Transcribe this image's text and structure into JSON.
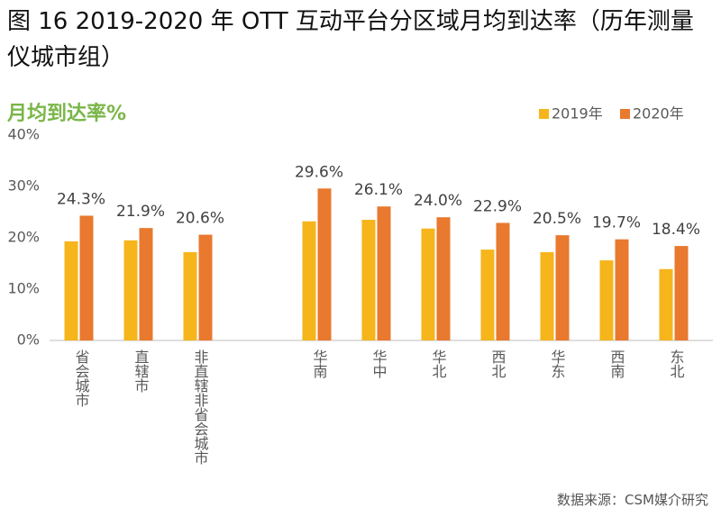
{
  "title": "图 16 2019-2020 年 OTT 互动平台分区域月均到达率（历年测量仪城市组）",
  "chart_data": {
    "type": "bar",
    "title": "月均到达率%",
    "categories": [
      "省会城市",
      "直辖市",
      "非直辖非省会城市",
      null,
      "华南",
      "华中",
      "华北",
      "西北",
      "华东",
      "西南",
      "东北"
    ],
    "series": [
      {
        "name": "2019年",
        "color": "#f5b51b",
        "values": [
          19.3,
          19.5,
          17.2,
          null,
          23.2,
          23.5,
          21.8,
          17.7,
          17.2,
          15.6,
          13.9
        ]
      },
      {
        "name": "2020年",
        "color": "#e8792e",
        "values": [
          24.3,
          21.9,
          20.6,
          null,
          29.6,
          26.1,
          24.0,
          22.9,
          20.5,
          19.7,
          18.4
        ],
        "value_labels": [
          "24.3%",
          "21.9%",
          "20.6%",
          null,
          "29.6%",
          "26.1%",
          "24.0%",
          "22.9%",
          "20.5%",
          "19.7%",
          "18.4%"
        ]
      }
    ],
    "ylim": [
      0,
      40
    ],
    "yticks": [
      {
        "value": 0,
        "label": "0%"
      },
      {
        "value": 10,
        "label": "10%"
      },
      {
        "value": 20,
        "label": "20%"
      },
      {
        "value": 30,
        "label": "30%"
      },
      {
        "value": 40,
        "label": "40%"
      }
    ],
    "grid": false,
    "legend": "top-right"
  },
  "source": "数据来源：CSM媒介研究"
}
